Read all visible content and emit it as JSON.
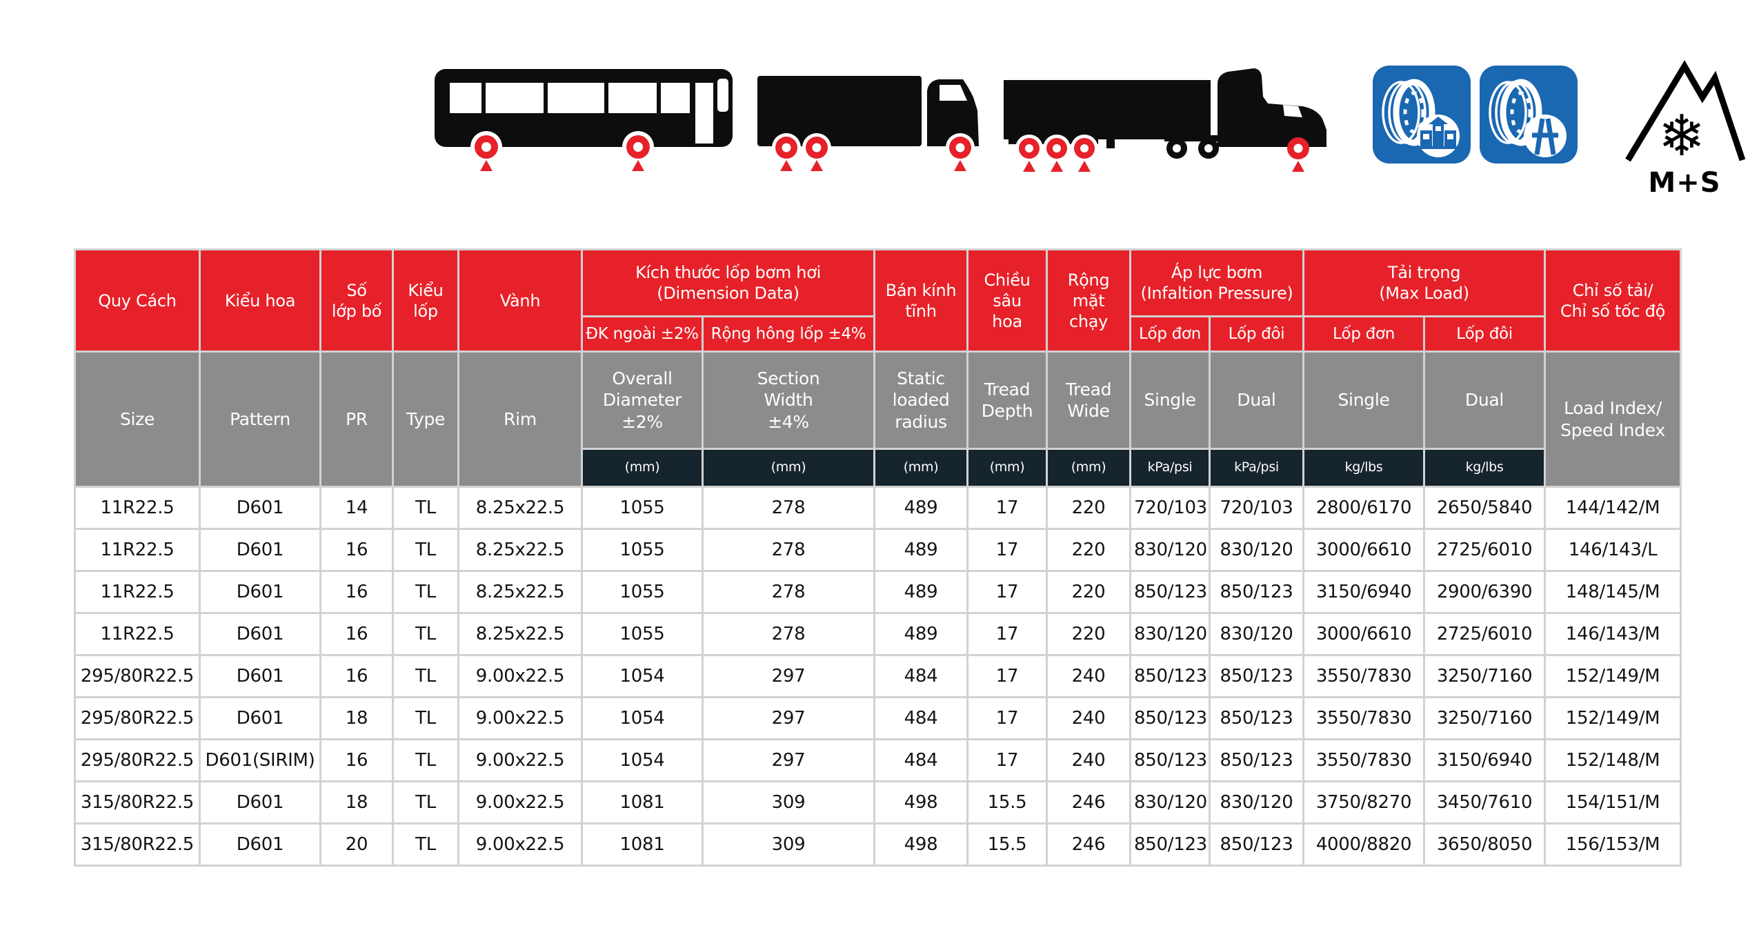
{
  "colors": {
    "accent_red": "#e62129",
    "header_gray": "#8c8c8f",
    "unit_row_dark": "#16242e",
    "badge_blue": "#1a67b2",
    "silhouette_black": "#0d0d0d"
  },
  "icons": {
    "vehicles": [
      "city-bus",
      "box-truck",
      "semi-trailer-truck"
    ],
    "wheel_marker": "red-wheel-with-arrow",
    "badges": [
      "urban-service-tire-badge",
      "highway-service-tire-badge",
      "mountain-snowflake-badge"
    ],
    "winter_label": "M+S"
  },
  "table": {
    "group_headers": {
      "dimension": "Kích thước lốp bơm hơi\n(Dimension Data)",
      "pressure": "Áp lực bơm\n(Infaltion Pressure)",
      "max_load": "Tải trọng\n(Max Load)"
    },
    "headers_vi": {
      "size": "Quy Cách",
      "pattern": "Kiểu hoa",
      "pr": "Số\nlớp bố",
      "type": "Kiểu\nlốp",
      "rim": "Vành",
      "overall_diameter": "ĐK ngoài ±2%",
      "section_width": "Rộng hông lốp ±4%",
      "static_radius": "Bán kính\ntĩnh",
      "tread_depth": "Chiều\nsâu\nhoa",
      "tread_wide": "Rộng\nmặt\nchạy",
      "pressure_single": "Lốp đơn",
      "pressure_dual": "Lốp đôi",
      "load_single": "Lốp đơn",
      "load_dual": "Lốp đôi",
      "load_speed_index": "Chỉ số tải/\nChỉ số tốc độ"
    },
    "headers_en": {
      "size": "Size",
      "pattern": "Pattern",
      "pr": "PR",
      "type": "Type",
      "rim": "Rim",
      "overall_diameter": "Overall\nDiameter\n±2%",
      "section_width": "Section\nWidth\n±4%",
      "static_radius": "Static\nloaded\nradius",
      "tread_depth": "Tread\nDepth",
      "tread_wide": "Tread\nWide",
      "pressure_single": "Single",
      "pressure_dual": "Dual",
      "load_single": "Single",
      "load_dual": "Dual",
      "load_speed_index": "Load Index/\nSpeed Index"
    },
    "units": {
      "overall_diameter": "(mm)",
      "section_width": "(mm)",
      "static_radius": "(mm)",
      "tread_depth": "(mm)",
      "tread_wide": "(mm)",
      "pressure_single": "kPa/psi",
      "pressure_dual": "kPa/psi",
      "load_single": "kg/lbs",
      "load_dual": "kg/lbs"
    },
    "rows": [
      [
        "11R22.5",
        "D601",
        "14",
        "TL",
        "8.25x22.5",
        "1055",
        "278",
        "489",
        "17",
        "220",
        "720/103",
        "720/103",
        "2800/6170",
        "2650/5840",
        "144/142/M"
      ],
      [
        "11R22.5",
        "D601",
        "16",
        "TL",
        "8.25x22.5",
        "1055",
        "278",
        "489",
        "17",
        "220",
        "830/120",
        "830/120",
        "3000/6610",
        "2725/6010",
        "146/143/L"
      ],
      [
        "11R22.5",
        "D601",
        "16",
        "TL",
        "8.25x22.5",
        "1055",
        "278",
        "489",
        "17",
        "220",
        "850/123",
        "850/123",
        "3150/6940",
        "2900/6390",
        "148/145/M"
      ],
      [
        "11R22.5",
        "D601",
        "16",
        "TL",
        "8.25x22.5",
        "1055",
        "278",
        "489",
        "17",
        "220",
        "830/120",
        "830/120",
        "3000/6610",
        "2725/6010",
        "146/143/M"
      ],
      [
        "295/80R22.5",
        "D601",
        "16",
        "TL",
        "9.00x22.5",
        "1054",
        "297",
        "484",
        "17",
        "240",
        "850/123",
        "850/123",
        "3550/7830",
        "3250/7160",
        "152/149/M"
      ],
      [
        "295/80R22.5",
        "D601",
        "18",
        "TL",
        "9.00x22.5",
        "1054",
        "297",
        "484",
        "17",
        "240",
        "850/123",
        "850/123",
        "3550/7830",
        "3250/7160",
        "152/149/M"
      ],
      [
        "295/80R22.5",
        "D601(SIRIM)",
        "16",
        "TL",
        "9.00x22.5",
        "1054",
        "297",
        "484",
        "17",
        "240",
        "850/123",
        "850/123",
        "3550/7830",
        "3150/6940",
        "152/148/M"
      ],
      [
        "315/80R22.5",
        "D601",
        "18",
        "TL",
        "9.00x22.5",
        "1081",
        "309",
        "498",
        "15.5",
        "246",
        "830/120",
        "830/120",
        "3750/8270",
        "3450/7610",
        "154/151/M"
      ],
      [
        "315/80R22.5",
        "D601",
        "20",
        "TL",
        "9.00x22.5",
        "1081",
        "309",
        "498",
        "15.5",
        "246",
        "850/123",
        "850/123",
        "4000/8820",
        "3650/8050",
        "156/153/M"
      ]
    ]
  }
}
